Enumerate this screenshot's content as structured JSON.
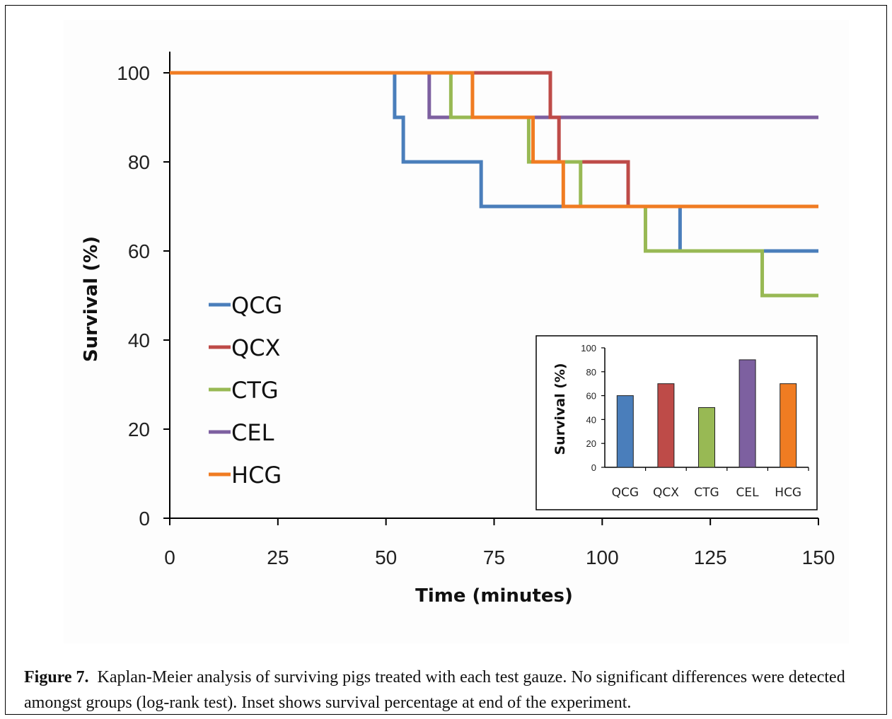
{
  "caption": {
    "label": "Figure 7.",
    "text": "Kaplan-Meier analysis of surviving pigs treated with each test gauze.  No significant differences were detected amongst groups (log-rank test).  Inset shows survival percentage at end of the experiment."
  },
  "chart_data": [
    {
      "type": "line",
      "step": true,
      "xlabel": "Time (minutes)",
      "ylabel": "Survival (%)",
      "xlim": [
        0,
        150
      ],
      "ylim": [
        0,
        100
      ],
      "xticks": [
        0,
        25,
        50,
        75,
        100,
        125,
        150
      ],
      "yticks": [
        0,
        20,
        40,
        60,
        80,
        100
      ],
      "legend_position": "left-middle",
      "series": [
        {
          "name": "QCG",
          "color": "#4a7ebb",
          "x": [
            0,
            52,
            54,
            72,
            118,
            150
          ],
          "y": [
            100,
            90,
            80,
            70,
            60,
            60
          ]
        },
        {
          "name": "QCX",
          "color": "#be4b48",
          "x": [
            0,
            88,
            90,
            106,
            150
          ],
          "y": [
            100,
            90,
            80,
            70,
            70
          ]
        },
        {
          "name": "CTG",
          "color": "#98b954",
          "x": [
            0,
            65,
            83,
            95,
            110,
            137,
            150
          ],
          "y": [
            100,
            90,
            80,
            70,
            60,
            50,
            50
          ]
        },
        {
          "name": "CEL",
          "color": "#7d60a0",
          "x": [
            0,
            60,
            150
          ],
          "y": [
            100,
            90,
            90
          ]
        },
        {
          "name": "HCG",
          "color": "#f07c22",
          "x": [
            0,
            70,
            84,
            91,
            150
          ],
          "y": [
            100,
            90,
            80,
            70,
            70
          ]
        }
      ]
    },
    {
      "type": "bar",
      "ylabel": "Survival (%)",
      "ylim": [
        0,
        100
      ],
      "yticks": [
        0,
        20,
        40,
        60,
        80,
        100
      ],
      "categories": [
        "QCG",
        "QCX",
        "CTG",
        "CEL",
        "HCG"
      ],
      "values": [
        60,
        70,
        50,
        90,
        70
      ],
      "colors": [
        "#4a7ebb",
        "#be4b48",
        "#98b954",
        "#7d60a0",
        "#f07c22"
      ]
    }
  ]
}
